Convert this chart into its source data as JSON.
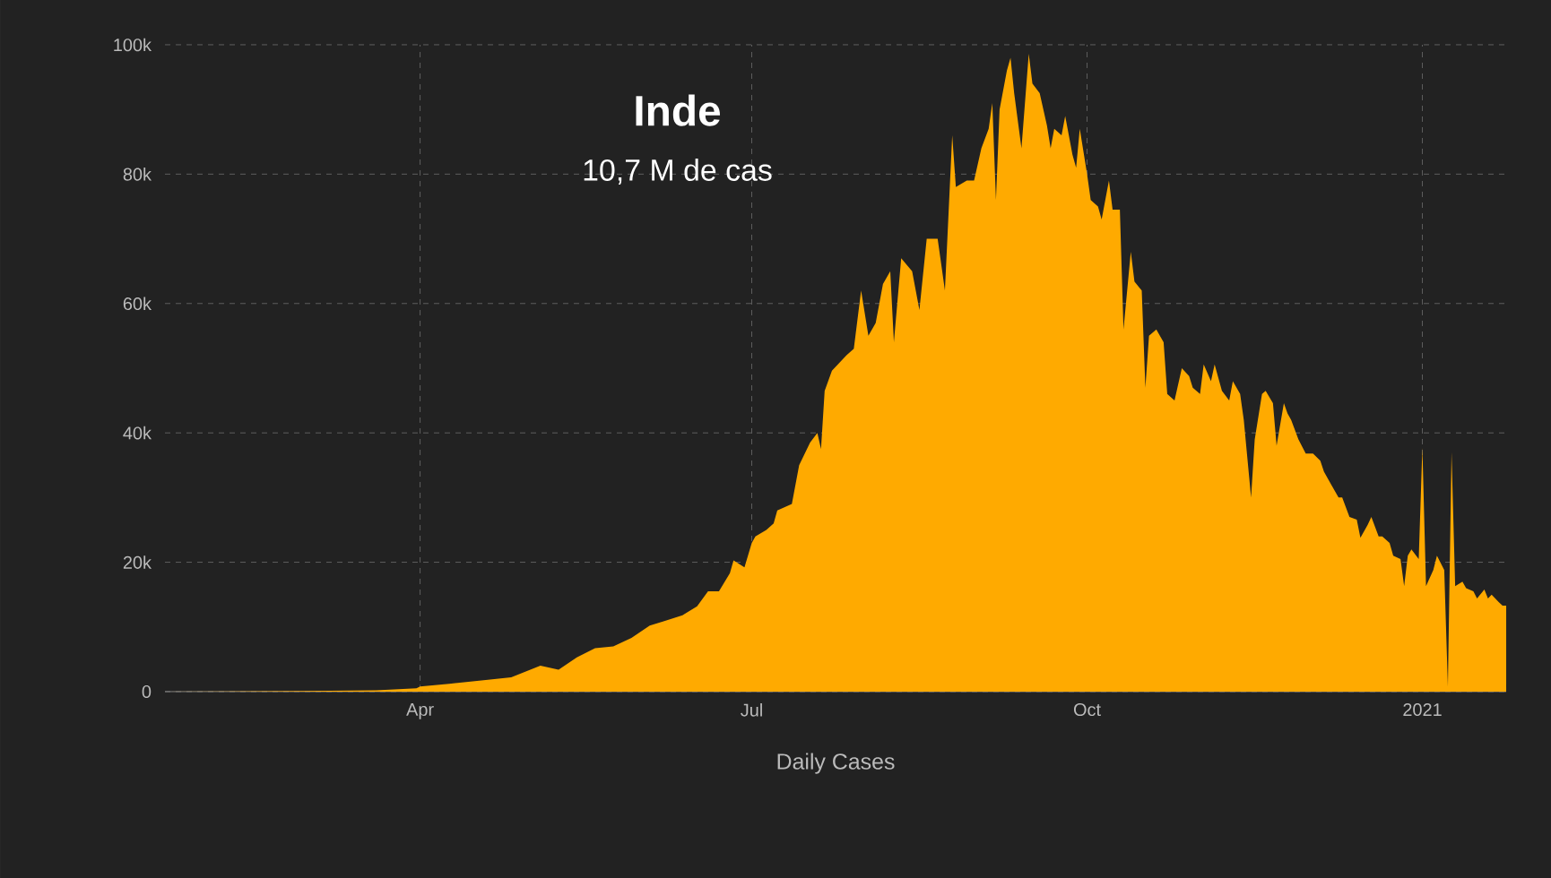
{
  "chart_data": {
    "type": "area",
    "title": "Inde",
    "subtitle": "10,7 M de cas",
    "xlabel": "Daily Cases",
    "color": "#ffaa00",
    "grid": true,
    "xlim": [
      "2020-01-22",
      "2021-01-24"
    ],
    "ylim": [
      0,
      100000
    ],
    "xticks": [
      {
        "value": "2020-04-01",
        "label": "Apr"
      },
      {
        "value": "2020-07-01",
        "label": "Jul"
      },
      {
        "value": "2020-10-01",
        "label": "Oct"
      },
      {
        "value": "2021-01-01",
        "label": "2021"
      }
    ],
    "yticks": [
      0,
      {
        "value": 20000,
        "label": "20k"
      },
      {
        "value": 40000,
        "label": "40k"
      },
      {
        "value": 60000,
        "label": "60k"
      },
      {
        "value": 80000,
        "label": "80k"
      },
      {
        "value": 100000,
        "label": "100k"
      }
    ],
    "x": [
      "2020-01-22",
      "2020-03-01",
      "2020-03-20",
      "2020-03-31",
      "2020-04-01",
      "2020-04-09",
      "2020-04-19",
      "2020-04-26",
      "2020-05-04",
      "2020-05-09",
      "2020-05-14",
      "2020-05-19",
      "2020-05-24",
      "2020-05-29",
      "2020-06-03",
      "2020-06-07",
      "2020-06-12",
      "2020-06-16",
      "2020-06-19",
      "2020-06-22",
      "2020-06-25",
      "2020-06-26",
      "2020-06-29",
      "2020-07-01",
      "2020-07-02",
      "2020-07-05",
      "2020-07-07",
      "2020-07-08",
      "2020-07-12",
      "2020-07-14",
      "2020-07-17",
      "2020-07-19",
      "2020-07-20",
      "2020-07-21",
      "2020-07-23",
      "2020-07-27",
      "2020-07-29",
      "2020-07-31",
      "2020-08-02",
      "2020-08-04",
      "2020-08-06",
      "2020-08-08",
      "2020-08-09",
      "2020-08-11",
      "2020-08-14",
      "2020-08-16",
      "2020-08-18",
      "2020-08-21",
      "2020-08-23",
      "2020-08-25",
      "2020-08-26",
      "2020-08-29",
      "2020-08-31",
      "2020-09-02",
      "2020-09-04",
      "2020-09-05",
      "2020-09-06",
      "2020-09-07",
      "2020-09-09",
      "2020-09-10",
      "2020-09-11",
      "2020-09-13",
      "2020-09-15",
      "2020-09-16",
      "2020-09-18",
      "2020-09-20",
      "2020-09-21",
      "2020-09-22",
      "2020-09-24",
      "2020-09-25",
      "2020-09-27",
      "2020-09-28",
      "2020-09-29",
      "2020-10-01",
      "2020-10-02",
      "2020-10-04",
      "2020-10-05",
      "2020-10-07",
      "2020-10-08",
      "2020-10-10",
      "2020-10-11",
      "2020-10-13",
      "2020-10-14",
      "2020-10-16",
      "2020-10-17",
      "2020-10-18",
      "2020-10-20",
      "2020-10-22",
      "2020-10-23",
      "2020-10-25",
      "2020-10-27",
      "2020-10-29",
      "2020-10-30",
      "2020-11-01",
      "2020-11-02",
      "2020-11-04",
      "2020-11-05",
      "2020-11-07",
      "2020-11-09",
      "2020-11-10",
      "2020-11-12",
      "2020-11-13",
      "2020-11-15",
      "2020-11-16",
      "2020-11-18",
      "2020-11-19",
      "2020-11-21",
      "2020-11-22",
      "2020-11-24",
      "2020-11-25",
      "2020-11-26",
      "2020-11-28",
      "2020-11-30",
      "2020-12-02",
      "2020-12-04",
      "2020-12-05",
      "2020-12-07",
      "2020-12-09",
      "2020-12-10",
      "2020-12-12",
      "2020-12-14",
      "2020-12-15",
      "2020-12-17",
      "2020-12-18",
      "2020-12-20",
      "2020-12-21",
      "2020-12-23",
      "2020-12-24",
      "2020-12-26",
      "2020-12-27",
      "2020-12-28",
      "2020-12-29",
      "2020-12-31",
      "2021-01-01",
      "2021-01-02",
      "2021-01-04",
      "2021-01-05",
      "2021-01-07",
      "2021-01-08",
      "2021-01-09",
      "2021-01-10",
      "2021-01-12",
      "2021-01-13",
      "2021-01-15",
      "2021-01-16",
      "2021-01-18",
      "2021-01-19",
      "2021-01-20",
      "2021-01-22",
      "2021-01-23",
      "2021-01-24"
    ],
    "values": [
      0,
      100,
      200,
      500,
      800,
      1200,
      1800,
      2200,
      4000,
      3400,
      5300,
      6700,
      7000,
      8300,
      10200,
      10900,
      11800,
      13200,
      15500,
      15500,
      18300,
      20300,
      19200,
      23000,
      24000,
      25000,
      26000,
      28000,
      29000,
      35000,
      38500,
      40000,
      37500,
      46500,
      49600,
      52000,
      53000,
      62000,
      55000,
      57000,
      63000,
      65000,
      54000,
      67000,
      65000,
      59000,
      70000,
      70000,
      62000,
      86000,
      78000,
      79000,
      79000,
      84000,
      87000,
      91000,
      76000,
      90000,
      96000,
      98000,
      92500,
      84000,
      98600,
      94000,
      92500,
      87500,
      84000,
      87000,
      86000,
      89000,
      83000,
      81000,
      87000,
      80000,
      76000,
      75000,
      73000,
      79000,
      74500,
      74500,
      56000,
      68000,
      63400,
      62000,
      47000,
      55000,
      56000,
      54000,
      46000,
      45000,
      50000,
      48800,
      47000,
      46000,
      50600,
      48000,
      50600,
      46500,
      45000,
      48000,
      46000,
      42000,
      30000,
      39000,
      46000,
      46500,
      44600,
      38000,
      44600,
      43000,
      42000,
      39000,
      36800,
      36800,
      35700,
      34000,
      32000,
      30000,
      30000,
      27000,
      26600,
      23800,
      25800,
      27000,
      24000,
      24000,
      23000,
      21000,
      20500,
      16300,
      21000,
      22000,
      20500,
      37700,
      16300,
      18800,
      21000,
      18800,
      800,
      37000,
      16300,
      17000,
      16000,
      15500,
      14400,
      15800,
      14400,
      15000,
      13800,
      13300,
      13300
    ]
  }
}
